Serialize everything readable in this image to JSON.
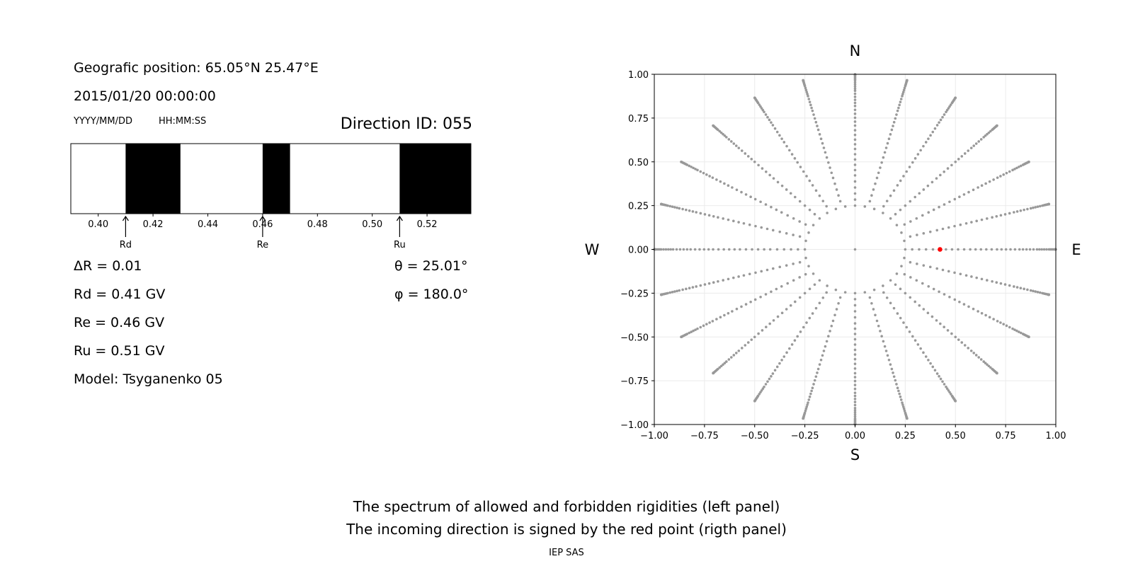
{
  "info": {
    "geo_position": "Geografic position: 65.05°N 25.47°E",
    "datetime": "2015/01/20 00:00:00",
    "date_format": "YYYY/MM/DD",
    "time_format": "HH:MM:SS",
    "direction_id": "Direction ID: 055"
  },
  "params": {
    "delta_r": "ΔR = 0.01",
    "rd": "Rd = 0.41 GV",
    "re": "Re = 0.46 GV",
    "ru": "Ru = 0.51 GV",
    "model": "Model: Tsyganenko 05",
    "theta": "θ = 25.01°",
    "phi": "φ = 180.0°"
  },
  "footer": {
    "line1": "The spectrum of allowed and forbidden rigidities (left panel)",
    "line2": "The incoming direction is signed by the red point (rigth panel)",
    "credit": "IEP SAS"
  },
  "chart_data": [
    {
      "type": "bar",
      "description": "rigidity spectrum",
      "xlim": [
        0.39,
        0.536
      ],
      "xticks": [
        0.4,
        0.42,
        0.44,
        0.46,
        0.48,
        0.5,
        0.52
      ],
      "xtick_labels": [
        "0.40",
        "0.42",
        "0.44",
        "0.46",
        "0.48",
        "0.50",
        "0.52"
      ],
      "forbidden_bands": [
        [
          0.41,
          0.43
        ],
        [
          0.46,
          0.47
        ],
        [
          0.51,
          0.536
        ]
      ],
      "band_color": "#000000",
      "markers": [
        {
          "label": "Rd",
          "x": 0.41
        },
        {
          "label": "Re",
          "x": 0.46
        },
        {
          "label": "Ru",
          "x": 0.51
        }
      ]
    },
    {
      "type": "scatter",
      "xlim": [
        -1.0,
        1.0
      ],
      "ylim": [
        -1.0,
        1.0
      ],
      "xticks": [
        -1.0,
        -0.75,
        -0.5,
        -0.25,
        0.0,
        0.25,
        0.5,
        0.75,
        1.0
      ],
      "xtick_labels": [
        "−1.00",
        "−0.75",
        "−0.50",
        "−0.25",
        "0.00",
        "0.25",
        "0.50",
        "0.75",
        "1.00"
      ],
      "yticks": [
        1.0,
        0.75,
        0.5,
        0.25,
        0.0,
        -0.25,
        -0.5,
        -0.75,
        -1.0
      ],
      "ytick_labels": [
        "1.00",
        "0.75",
        "0.50",
        "0.25",
        "0.00",
        "−0.25",
        "−0.50",
        "−0.75",
        "−1.00"
      ],
      "grid": true,
      "compass": {
        "north": "N",
        "south": "S",
        "west": "W",
        "east": "E"
      },
      "grid_points": {
        "color": "#999999",
        "center": [
          0.0,
          0.0
        ],
        "rings": [
          0.25,
          0.4226,
          0.5736,
          0.7071,
          0.8192,
          0.9063,
          0.9659,
          0.9962,
          1.0
        ],
        "ring_points": 32,
        "rays_every_deg": 15,
        "ray_points_per_ring": 5
      },
      "highlight": {
        "x": 0.423,
        "y": 0.0,
        "color": "#ff0000"
      }
    }
  ]
}
